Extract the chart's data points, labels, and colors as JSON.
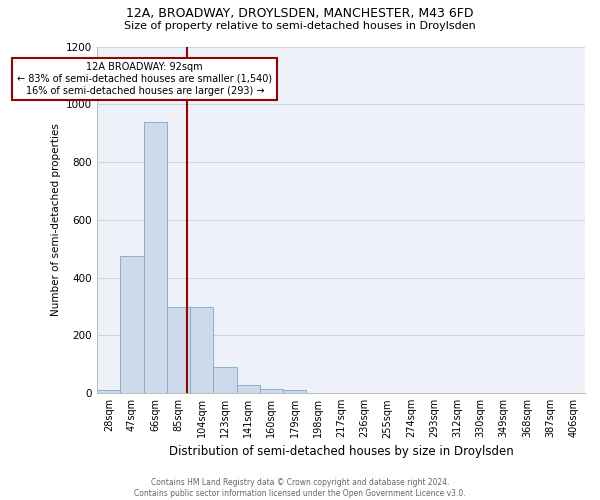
{
  "title": "12A, BROADWAY, DROYLSDEN, MANCHESTER, M43 6FD",
  "subtitle": "Size of property relative to semi-detached houses in Droylsden",
  "xlabel": "Distribution of semi-detached houses by size in Droylsden",
  "ylabel": "Number of semi-detached properties",
  "footer_line1": "Contains HM Land Registry data © Crown copyright and database right 2024.",
  "footer_line2": "Contains public sector information licensed under the Open Government Licence v3.0.",
  "bin_labels": [
    "28sqm",
    "47sqm",
    "66sqm",
    "85sqm",
    "104sqm",
    "123sqm",
    "141sqm",
    "160sqm",
    "179sqm",
    "198sqm",
    "217sqm",
    "236sqm",
    "255sqm",
    "274sqm",
    "293sqm",
    "312sqm",
    "330sqm",
    "349sqm",
    "368sqm",
    "387sqm",
    "406sqm"
  ],
  "bar_values": [
    10,
    475,
    940,
    300,
    300,
    90,
    30,
    15,
    10,
    0,
    0,
    0,
    0,
    0,
    0,
    0,
    0,
    0,
    0,
    0,
    0
  ],
  "bar_color": "#ccdaeb",
  "bar_edge_color": "#7aaac8",
  "vline_color": "#990000",
  "annotation_text_line1": "12A BROADWAY: 92sqm",
  "annotation_text_line2": "← 83% of semi-detached houses are smaller (1,540)",
  "annotation_text_line3": "16% of semi-detached houses are larger (293) →",
  "annotation_box_facecolor": "#ffffff",
  "annotation_box_edgecolor": "#990000",
  "ylim": [
    0,
    1200
  ],
  "yticks": [
    0,
    200,
    400,
    600,
    800,
    1000,
    1200
  ],
  "grid_color": "#c8d4e4",
  "background_color": "#eef2f8",
  "title_fontsize": 9,
  "subtitle_fontsize": 8,
  "xlabel_fontsize": 8.5,
  "ylabel_fontsize": 7.5,
  "tick_fontsize": 7,
  "ytick_fontsize": 7.5,
  "footer_fontsize": 5.5,
  "vline_x": 3.37
}
